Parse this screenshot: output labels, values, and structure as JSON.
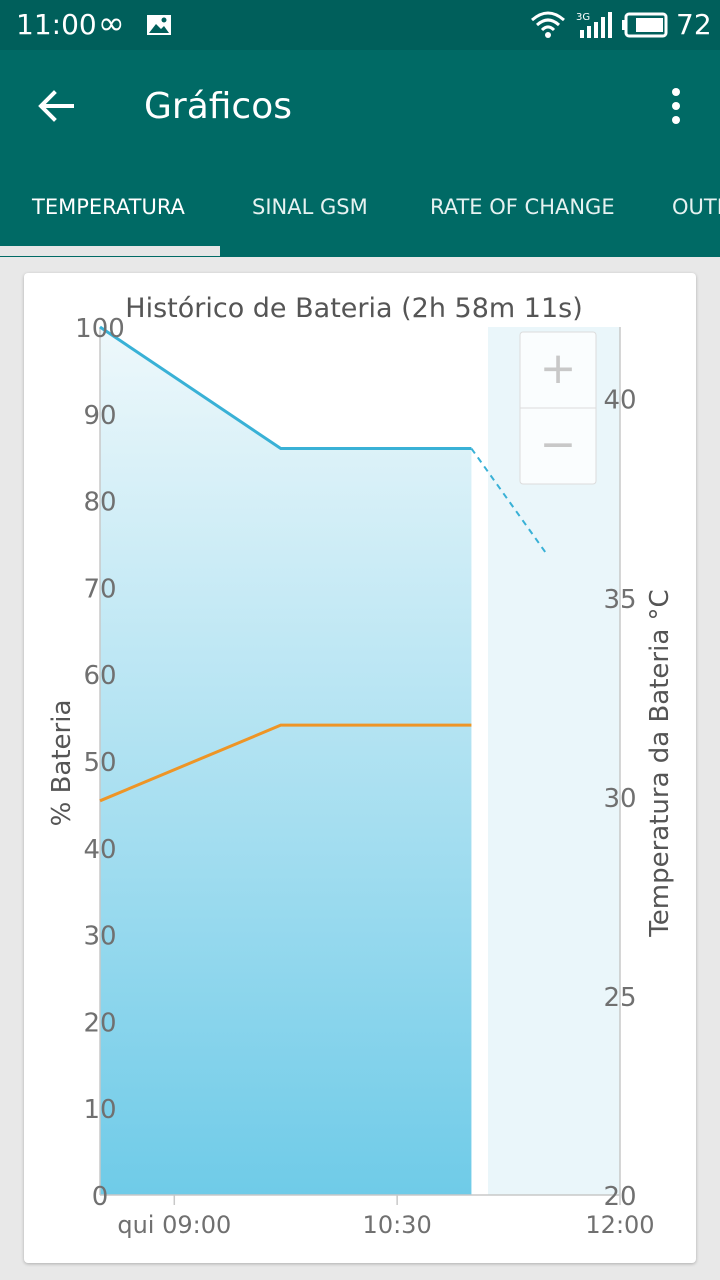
{
  "status_bar": {
    "time": "11:00",
    "infinity_symbol": "∞",
    "notification_icon": "image-icon",
    "wifi_icon": "wifi-icon",
    "signal_icon": "signal-3g-icon",
    "network_type": "3G",
    "battery_icon": "battery-icon",
    "battery_level": "72"
  },
  "app_bar": {
    "title": "Gráficos",
    "back_icon": "arrow-back-icon",
    "menu_icon": "more-vert-icon"
  },
  "tabs": [
    {
      "label": "TEMPERATURA",
      "active": true
    },
    {
      "label": "SINAL GSM",
      "active": false
    },
    {
      "label": "RATE OF CHANGE",
      "active": false
    },
    {
      "label": "OUTI",
      "active": false
    }
  ],
  "chart_data": {
    "type": "line",
    "title": "Histórico de Bateria (2h 58m 11s)",
    "ylabel": "% Bateria",
    "y2label": "Temperatura da Bateria °C",
    "ylim": [
      0,
      100
    ],
    "y2lim": [
      20,
      41.8
    ],
    "y_ticks": [
      "0",
      "10",
      "20",
      "30",
      "40",
      "50",
      "60",
      "70",
      "80",
      "90",
      "100"
    ],
    "y2_ticks": [
      "20",
      "25",
      "30",
      "35",
      "40"
    ],
    "x_ticks": [
      "qui 09:00",
      "10:30",
      "12:00"
    ],
    "series": [
      {
        "axis": "left",
        "color": "#39b1d6",
        "x": [
          "08:30",
          "09:43",
          "11:00",
          "11:30"
        ],
        "values": [
          100,
          86,
          86,
          74
        ],
        "projected_from": "11:00"
      },
      {
        "axis": "right",
        "color": "#ee9526",
        "x": [
          "08:30",
          "09:43",
          "11:00"
        ],
        "values": [
          29.9,
          31.8,
          31.8
        ]
      }
    ],
    "zoom_controls": {
      "zoom_in": "+",
      "zoom_out": "−"
    }
  }
}
